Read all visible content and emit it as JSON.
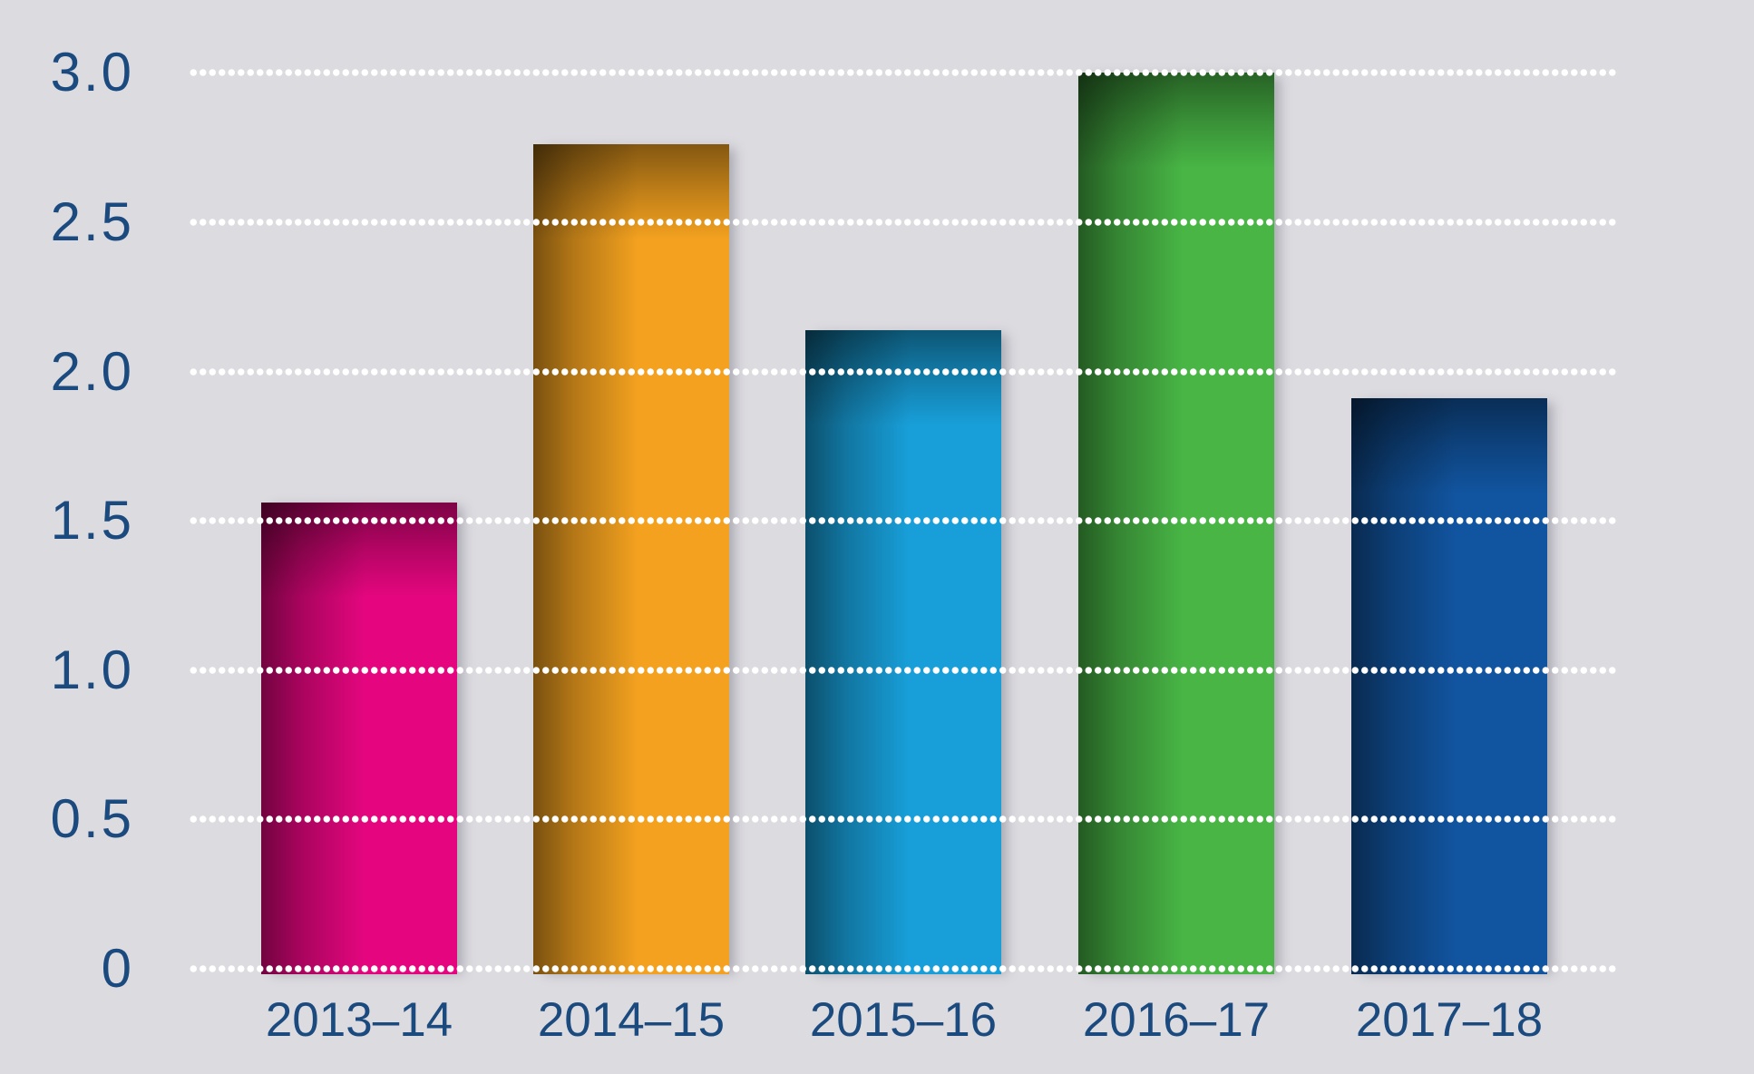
{
  "colors": {
    "background": "#dcdbe0",
    "label_text": "#1b4a7f",
    "gridline_dots": "#ffffff"
  },
  "chart_data": {
    "type": "bar",
    "categories": [
      "2013–14",
      "2014–15",
      "2015–16",
      "2016–17",
      "2017–18"
    ],
    "values": [
      1.56,
      2.76,
      2.14,
      3.0,
      1.91
    ],
    "bar_colors": [
      "#e5067f",
      "#f3a11f",
      "#189fd9",
      "#48b545",
      "#11549f"
    ],
    "bar_color_names": [
      "magenta-pink",
      "orange",
      "light-blue",
      "green",
      "dark-blue"
    ],
    "ylim": [
      0,
      3.0
    ],
    "yticks": [
      0,
      0.5,
      1.0,
      1.5,
      2.0,
      2.5,
      3.0
    ],
    "ytick_labels": [
      "0",
      "0.5",
      "1.0",
      "1.5",
      "2.0",
      "2.5",
      "3.0"
    ],
    "grid": "horizontal dotted white lines drawn over bars",
    "legend": "none",
    "bar_shading": "dark inner shadow at top and left of each bar"
  }
}
